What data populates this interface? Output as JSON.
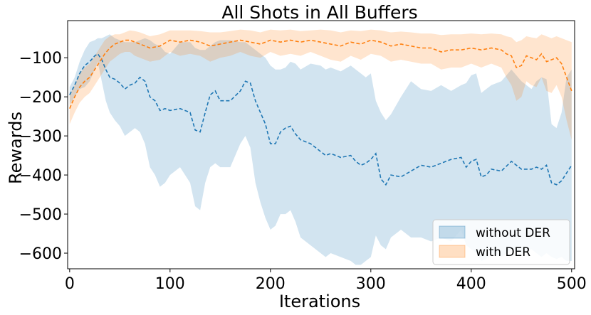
{
  "chart_data": {
    "type": "line",
    "title": "All Shots in All Buffers",
    "xlabel": "Iterations",
    "ylabel": "Rewards",
    "xlim": [
      -2,
      503
    ],
    "ylim": [
      -640,
      -5
    ],
    "x_ticks": [
      0,
      100,
      200,
      300,
      400,
      500
    ],
    "y_ticks": [
      -100,
      -200,
      -300,
      -400,
      -500,
      -600
    ],
    "grid": false,
    "legend_position": "lower right",
    "series": [
      {
        "name": "without DER",
        "color": "#1f77b4",
        "band_color": "#1f77b4",
        "line_style": "dashed",
        "x": [
          0,
          5,
          10,
          15,
          20,
          25,
          28,
          32,
          36,
          40,
          45,
          50,
          55,
          60,
          65,
          70,
          75,
          80,
          85,
          90,
          95,
          100,
          110,
          120,
          125,
          130,
          135,
          140,
          145,
          150,
          160,
          170,
          175,
          180,
          185,
          190,
          195,
          200,
          205,
          210,
          215,
          220,
          225,
          230,
          240,
          250,
          255,
          260,
          270,
          280,
          285,
          290,
          295,
          300,
          305,
          310,
          315,
          320,
          330,
          340,
          350,
          360,
          370,
          380,
          390,
          395,
          400,
          405,
          410,
          415,
          420,
          430,
          440,
          450,
          460,
          465,
          470,
          475,
          480,
          485,
          490,
          495,
          500
        ],
        "values": [
          -195,
          -170,
          -140,
          -120,
          -110,
          -95,
          -90,
          -105,
          -130,
          -150,
          -155,
          -165,
          -180,
          -170,
          -165,
          -150,
          -160,
          -200,
          -210,
          -235,
          -230,
          -235,
          -230,
          -240,
          -285,
          -290,
          -240,
          -195,
          -185,
          -210,
          -210,
          -185,
          -160,
          -165,
          -210,
          -240,
          -270,
          -320,
          -320,
          -290,
          -280,
          -275,
          -295,
          -310,
          -320,
          -340,
          -350,
          -345,
          -355,
          -350,
          -365,
          -375,
          -370,
          -360,
          -345,
          -410,
          -425,
          -400,
          -405,
          -390,
          -375,
          -380,
          -370,
          -360,
          -355,
          -380,
          -365,
          -360,
          -405,
          -400,
          -385,
          -390,
          -365,
          -385,
          -385,
          -380,
          -385,
          -375,
          -420,
          -425,
          -415,
          -395,
          -375
        ],
        "upper": [
          -175,
          -150,
          -110,
          -80,
          -60,
          -55,
          -50,
          -50,
          -45,
          -40,
          -50,
          -55,
          -60,
          -60,
          -60,
          -55,
          -50,
          -55,
          -65,
          -70,
          -85,
          -90,
          -60,
          -60,
          -75,
          -80,
          -80,
          -70,
          -60,
          -55,
          -55,
          -60,
          -60,
          -70,
          -80,
          -90,
          -100,
          -120,
          -130,
          -130,
          -125,
          -110,
          -115,
          -130,
          -115,
          -120,
          -130,
          -125,
          -135,
          -120,
          -130,
          -140,
          -150,
          -140,
          -210,
          -240,
          -260,
          -245,
          -200,
          -160,
          -180,
          -185,
          -170,
          -185,
          -170,
          -165,
          -145,
          -140,
          -190,
          -180,
          -170,
          -160,
          -130,
          -160,
          -180,
          -160,
          -150,
          -155,
          -270,
          -280,
          -240,
          -150,
          -130
        ],
        "lower": [
          -220,
          -200,
          -180,
          -175,
          -160,
          -130,
          -110,
          -160,
          -210,
          -240,
          -260,
          -275,
          -300,
          -290,
          -280,
          -290,
          -320,
          -380,
          -400,
          -430,
          -420,
          -400,
          -380,
          -420,
          -480,
          -490,
          -420,
          -380,
          -370,
          -380,
          -380,
          -320,
          -300,
          -330,
          -420,
          -470,
          -510,
          -540,
          -530,
          -500,
          -500,
          -490,
          -520,
          -560,
          -580,
          -600,
          -610,
          -600,
          -610,
          -620,
          -630,
          -630,
          -620,
          -610,
          -555,
          -580,
          -590,
          -560,
          -540,
          -560,
          -560,
          -570,
          -560,
          -570,
          -540,
          -580,
          -590,
          -600,
          -620,
          -615,
          -600,
          -610,
          -590,
          -600,
          -590,
          -600,
          -610,
          -600,
          -610,
          -615,
          -610,
          -620,
          -620
        ]
      },
      {
        "name": "with DER",
        "color": "#ff7f0e",
        "band_color": "#ff7f0e",
        "line_style": "dashed",
        "x": [
          0,
          5,
          10,
          15,
          20,
          25,
          30,
          35,
          40,
          45,
          50,
          55,
          60,
          65,
          70,
          75,
          80,
          90,
          100,
          110,
          120,
          130,
          140,
          150,
          160,
          170,
          180,
          190,
          200,
          210,
          220,
          230,
          240,
          250,
          260,
          270,
          280,
          290,
          300,
          310,
          320,
          330,
          340,
          350,
          360,
          370,
          380,
          390,
          400,
          410,
          420,
          430,
          435,
          440,
          445,
          450,
          455,
          460,
          465,
          470,
          475,
          480,
          485,
          490,
          495,
          500
        ],
        "values": [
          -230,
          -200,
          -175,
          -160,
          -150,
          -130,
          -110,
          -90,
          -75,
          -65,
          -60,
          -55,
          -55,
          -60,
          -65,
          -70,
          -75,
          -70,
          -55,
          -60,
          -55,
          -60,
          -70,
          -65,
          -60,
          -55,
          -60,
          -65,
          -55,
          -60,
          -55,
          -60,
          -55,
          -60,
          -65,
          -70,
          -60,
          -65,
          -55,
          -60,
          -70,
          -65,
          -70,
          -75,
          -75,
          -85,
          -80,
          -80,
          -75,
          -80,
          -75,
          -80,
          -90,
          -95,
          -125,
          -120,
          -95,
          -100,
          -105,
          -90,
          -110,
          -105,
          -100,
          -115,
          -150,
          -185
        ],
        "upper": [
          -195,
          -170,
          -140,
          -125,
          -115,
          -95,
          -75,
          -55,
          -45,
          -40,
          -40,
          -35,
          -30,
          -32,
          -35,
          -40,
          -45,
          -40,
          -30,
          -30,
          -30,
          -32,
          -35,
          -35,
          -32,
          -28,
          -30,
          -35,
          -28,
          -30,
          -28,
          -32,
          -30,
          -28,
          -30,
          -35,
          -30,
          -32,
          -28,
          -30,
          -35,
          -33,
          -35,
          -38,
          -38,
          -42,
          -40,
          -40,
          -38,
          -40,
          -38,
          -40,
          -45,
          -48,
          -60,
          -55,
          -45,
          -48,
          -50,
          -40,
          -45,
          -50,
          -45,
          -50,
          -55,
          -60
        ],
        "lower": [
          -270,
          -240,
          -215,
          -200,
          -190,
          -170,
          -150,
          -130,
          -110,
          -100,
          -90,
          -85,
          -85,
          -95,
          -100,
          -105,
          -110,
          -105,
          -85,
          -95,
          -90,
          -95,
          -110,
          -100,
          -95,
          -85,
          -95,
          -100,
          -85,
          -95,
          -90,
          -95,
          -85,
          -95,
          -105,
          -110,
          -95,
          -105,
          -90,
          -95,
          -110,
          -105,
          -110,
          -115,
          -115,
          -130,
          -125,
          -125,
          -115,
          -125,
          -115,
          -125,
          -150,
          -170,
          -210,
          -200,
          -160,
          -170,
          -175,
          -150,
          -185,
          -190,
          -170,
          -200,
          -260,
          -310
        ]
      }
    ]
  }
}
